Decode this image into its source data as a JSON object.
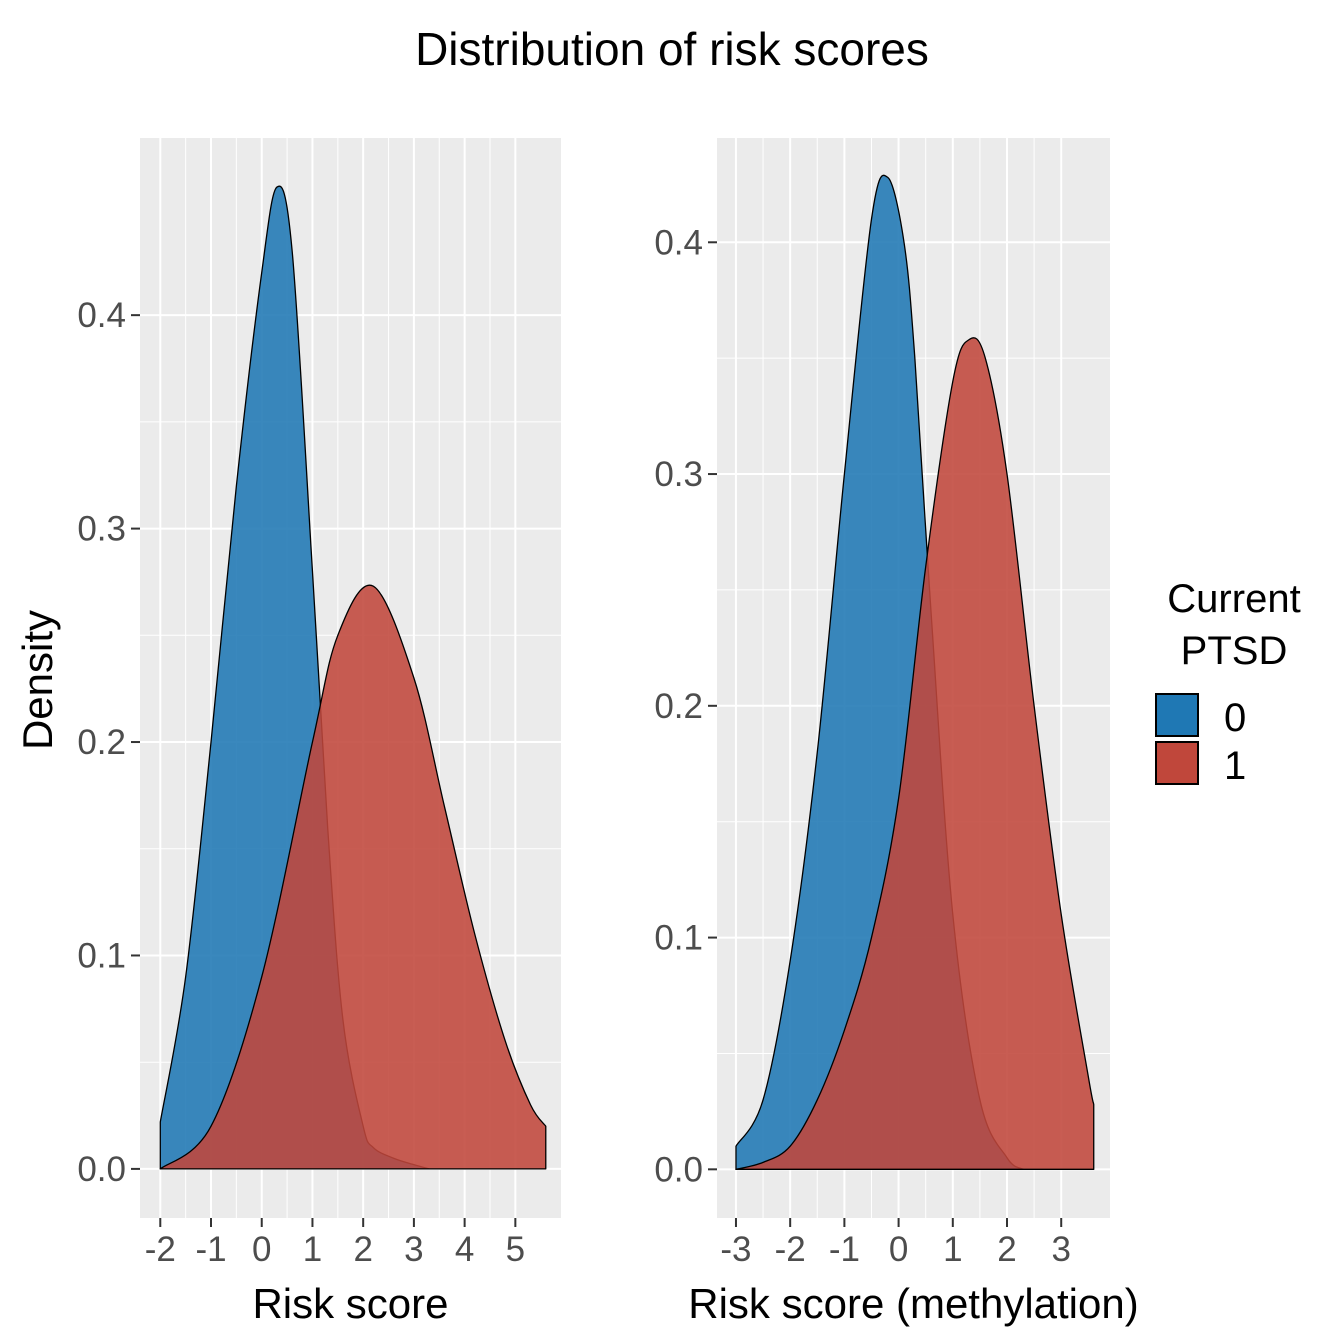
{
  "title": "Distribution of risk scores",
  "ylabel": "Density",
  "legend": {
    "title_line1": "Current",
    "title_line2": "PTSD",
    "items": [
      {
        "label": "0",
        "color": "#1f78b4"
      },
      {
        "label": "1",
        "color": "#c0473b"
      }
    ]
  },
  "colors": {
    "panel_bg": "#ebebeb",
    "grid": "#ffffff",
    "series0": "#1f78b4",
    "series1": "#c0473b",
    "outline": "#000000"
  },
  "chart_data": [
    {
      "type": "area",
      "subtype": "density",
      "xlabel": "Risk score",
      "ylabel": "Density",
      "xlim": [
        -2.4,
        5.9
      ],
      "ylim": [
        -0.023,
        0.483
      ],
      "xticks": [
        -2,
        -1,
        0,
        1,
        2,
        3,
        4,
        5
      ],
      "yticks": [
        0.0,
        0.1,
        0.2,
        0.3,
        0.4
      ],
      "ytick_labels": [
        "0.0",
        "0.1",
        "0.2",
        "0.3",
        "0.4"
      ],
      "series": [
        {
          "name": "0",
          "x": [
            -2.0,
            -1.5,
            -1.0,
            -0.5,
            0.0,
            0.3,
            0.6,
            1.0,
            1.3,
            1.6,
            2.0,
            2.2,
            2.6,
            3.0,
            3.3
          ],
          "y": [
            0.022,
            0.09,
            0.2,
            0.32,
            0.42,
            0.46,
            0.43,
            0.28,
            0.16,
            0.07,
            0.02,
            0.01,
            0.005,
            0.002,
            0.0
          ]
        },
        {
          "name": "1",
          "x": [
            -2.0,
            -1.0,
            0.0,
            1.0,
            1.5,
            2.2,
            3.0,
            3.6,
            4.2,
            4.8,
            5.3,
            5.6
          ],
          "y": [
            0.0,
            0.02,
            0.09,
            0.2,
            0.25,
            0.273,
            0.23,
            0.17,
            0.11,
            0.06,
            0.03,
            0.02
          ]
        }
      ]
    },
    {
      "type": "area",
      "subtype": "density",
      "xlabel": "Risk score (methylation)",
      "ylabel": "Density",
      "xlim": [
        -3.35,
        3.9
      ],
      "ylim": [
        -0.021,
        0.445
      ],
      "xticks": [
        -3,
        -2,
        -1,
        0,
        1,
        2,
        3
      ],
      "yticks": [
        0.0,
        0.1,
        0.2,
        0.3,
        0.4
      ],
      "ytick_labels": [
        "0.0",
        "0.1",
        "0.2",
        "0.3",
        "0.4"
      ],
      "series": [
        {
          "name": "0",
          "x": [
            -3.0,
            -2.5,
            -2.0,
            -1.5,
            -1.0,
            -0.5,
            -0.2,
            0.1,
            0.3,
            0.6,
            1.0,
            1.5,
            2.0,
            2.3
          ],
          "y": [
            0.01,
            0.03,
            0.09,
            0.18,
            0.3,
            0.41,
            0.428,
            0.4,
            0.35,
            0.24,
            0.11,
            0.03,
            0.005,
            0.0
          ]
        },
        {
          "name": "1",
          "x": [
            -3.0,
            -2.5,
            -2.0,
            -1.5,
            -1.0,
            -0.5,
            0.0,
            0.5,
            1.0,
            1.3,
            1.6,
            2.0,
            2.5,
            3.0,
            3.5,
            3.6
          ],
          "y": [
            0.0,
            0.003,
            0.01,
            0.03,
            0.06,
            0.1,
            0.16,
            0.26,
            0.34,
            0.358,
            0.35,
            0.3,
            0.2,
            0.11,
            0.04,
            0.028
          ]
        }
      ]
    }
  ]
}
